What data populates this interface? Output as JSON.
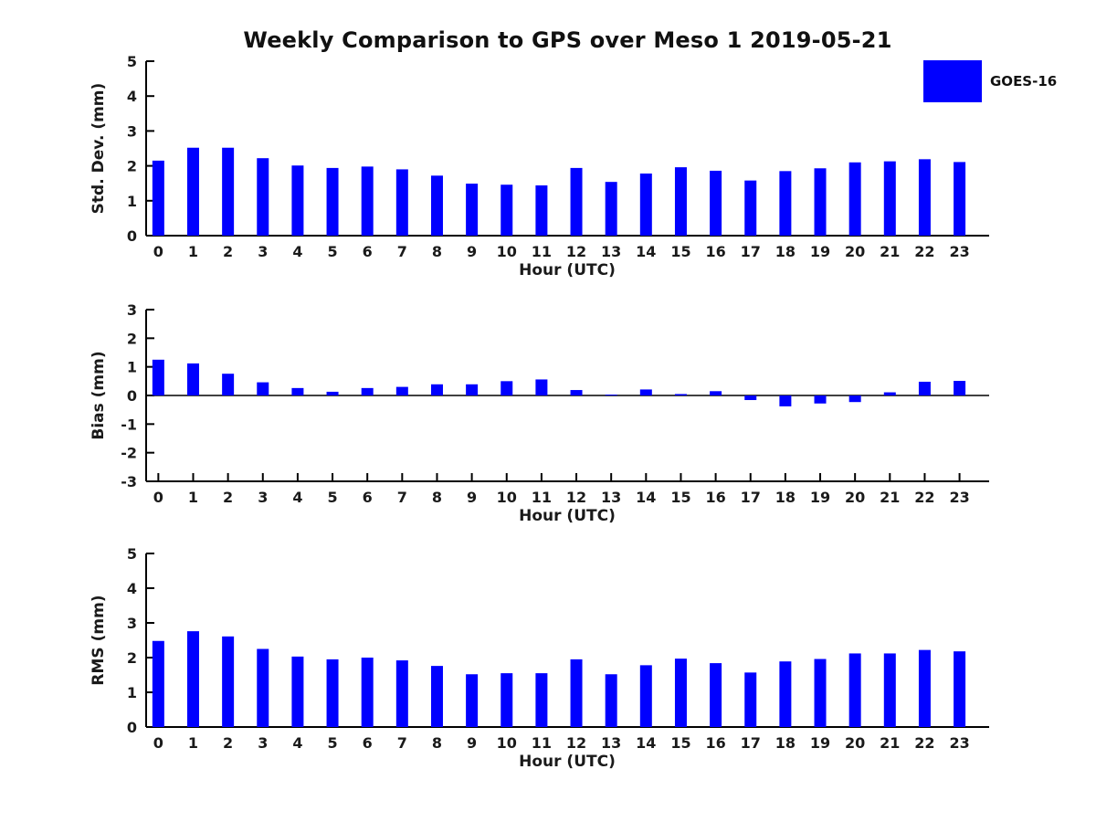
{
  "title": "Weekly Comparison to GPS over Meso 1 2019-05-21",
  "legend": {
    "label": "GOES-16",
    "color": "#0000FF",
    "position": "upper right"
  },
  "chart_data": [
    {
      "type": "bar",
      "ylabel": "Std. Dev. (mm)",
      "xlabel": "Hour (UTC)",
      "ylim": [
        0,
        5
      ],
      "yticks": [
        0,
        1,
        2,
        3,
        4,
        5
      ],
      "grid": false,
      "categories": [
        0,
        1,
        2,
        3,
        4,
        5,
        6,
        7,
        8,
        9,
        10,
        11,
        12,
        13,
        14,
        15,
        16,
        17,
        18,
        19,
        20,
        21,
        22,
        23
      ],
      "series": [
        {
          "name": "GOES-16",
          "color": "#0000FF",
          "values": [
            2.15,
            2.52,
            2.52,
            2.22,
            2.01,
            1.94,
            1.98,
            1.9,
            1.72,
            1.49,
            1.46,
            1.44,
            1.94,
            1.54,
            1.78,
            1.96,
            1.86,
            1.58,
            1.85,
            1.93,
            2.1,
            2.13,
            2.19,
            2.11
          ]
        }
      ]
    },
    {
      "type": "bar",
      "ylabel": "Bias (mm)",
      "xlabel": "Hour (UTC)",
      "ylim": [
        -3,
        3
      ],
      "yticks": [
        -3,
        -2,
        -1,
        0,
        1,
        2,
        3
      ],
      "grid": false,
      "categories": [
        0,
        1,
        2,
        3,
        4,
        5,
        6,
        7,
        8,
        9,
        10,
        11,
        12,
        13,
        14,
        15,
        16,
        17,
        18,
        19,
        20,
        21,
        22,
        23
      ],
      "series": [
        {
          "name": "GOES-16",
          "color": "#0000FF",
          "values": [
            1.25,
            1.12,
            0.76,
            0.46,
            0.26,
            0.13,
            0.26,
            0.3,
            0.39,
            0.39,
            0.5,
            0.56,
            0.19,
            0.03,
            0.21,
            0.05,
            0.15,
            -0.16,
            -0.38,
            -0.28,
            -0.23,
            0.11,
            0.48,
            0.51
          ]
        }
      ]
    },
    {
      "type": "bar",
      "ylabel": "RMS (mm)",
      "xlabel": "Hour (UTC)",
      "ylim": [
        0,
        5
      ],
      "yticks": [
        0,
        1,
        2,
        3,
        4,
        5
      ],
      "grid": false,
      "categories": [
        0,
        1,
        2,
        3,
        4,
        5,
        6,
        7,
        8,
        9,
        10,
        11,
        12,
        13,
        14,
        15,
        16,
        17,
        18,
        19,
        20,
        21,
        22,
        23
      ],
      "series": [
        {
          "name": "GOES-16",
          "color": "#0000FF",
          "values": [
            2.48,
            2.76,
            2.61,
            2.25,
            2.03,
            1.95,
            2.0,
            1.92,
            1.76,
            1.52,
            1.55,
            1.55,
            1.95,
            1.52,
            1.78,
            1.97,
            1.84,
            1.57,
            1.89,
            1.96,
            2.12,
            2.12,
            2.22,
            2.18
          ]
        }
      ]
    }
  ]
}
